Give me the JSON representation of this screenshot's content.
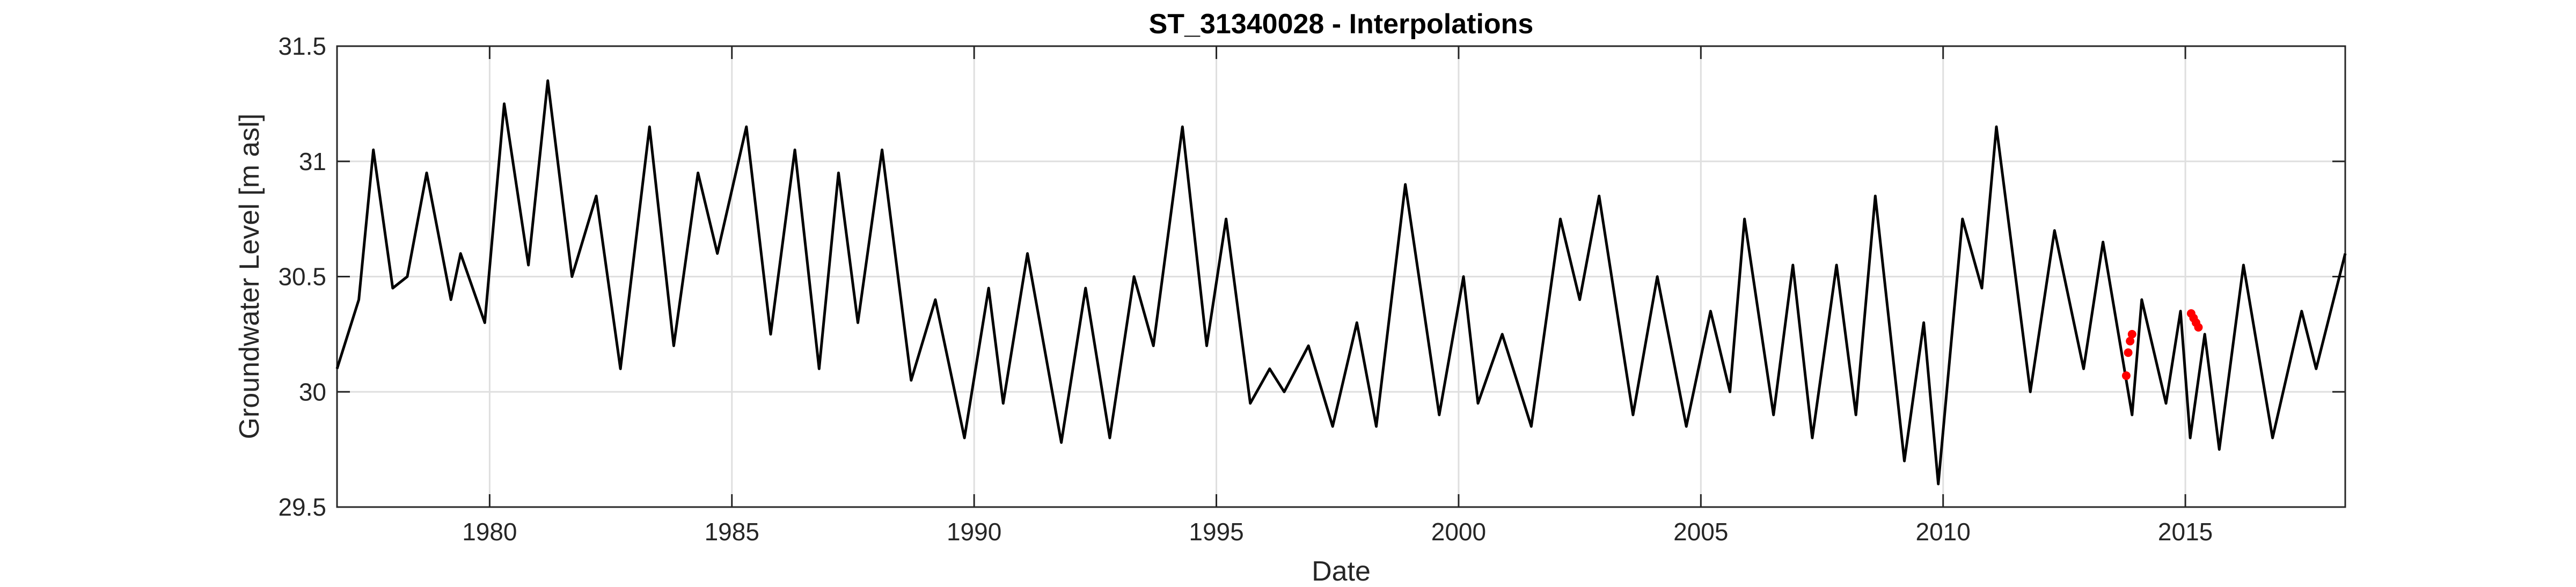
{
  "chart_data": {
    "type": "line",
    "title": "ST_31340028 - Interpolations",
    "xlabel": "Date",
    "ylabel": "Groundwater Level [m asl]",
    "xlim": [
      1976.85,
      2018.3
    ],
    "xticks": [
      1980,
      1985,
      1990,
      1995,
      2000,
      2005,
      2010,
      2015
    ],
    "ylim": [
      29.5,
      31.5
    ],
    "yticks": [
      29.5,
      30,
      30.5,
      31,
      31.5
    ],
    "grid": true,
    "series": [
      {
        "color": "#000000",
        "mode": "line",
        "x": [
          1976.85,
          1977.3,
          1977.6,
          1978.0,
          1978.3,
          1978.7,
          1979.2,
          1979.4,
          1979.9,
          1980.3,
          1980.8,
          1981.2,
          1981.7,
          1982.2,
          1982.7,
          1983.3,
          1983.8,
          1984.3,
          1984.7,
          1985.3,
          1985.8,
          1986.3,
          1986.8,
          1987.2,
          1987.6,
          1988.1,
          1988.7,
          1989.2,
          1989.8,
          1990.3,
          1990.6,
          1991.1,
          1991.8,
          1992.3,
          1992.8,
          1993.3,
          1993.7,
          1994.3,
          1994.8,
          1995.2,
          1995.7,
          1996.1,
          1996.4,
          1996.9,
          1997.4,
          1997.9,
          1998.3,
          1998.7,
          1998.9,
          1999.6,
          2000.1,
          2000.4,
          2000.9,
          2001.5,
          2002.1,
          2002.5,
          2002.9,
          2003.6,
          2004.1,
          2004.7,
          2005.2,
          2005.6,
          2005.9,
          2006.5,
          2006.9,
          2007.3,
          2007.8,
          2008.2,
          2008.6,
          2009.2,
          2009.6,
          2009.9,
          2010.4,
          2010.8,
          2011.1,
          2011.8,
          2012.3,
          2012.6,
          2012.9,
          2013.3,
          2013.9,
          2014.1,
          2014.6,
          2014.9,
          2015.1,
          2015.4,
          2015.7,
          2016.2,
          2016.8,
          2017.4,
          2017.7,
          2018.3
        ],
        "values": [
          30.1,
          30.4,
          31.05,
          30.45,
          30.5,
          30.95,
          30.4,
          30.6,
          30.3,
          31.25,
          30.55,
          31.35,
          30.5,
          30.85,
          30.1,
          31.15,
          30.2,
          30.95,
          30.6,
          31.15,
          30.25,
          31.05,
          30.1,
          30.95,
          30.3,
          31.05,
          30.05,
          30.4,
          29.8,
          30.45,
          29.95,
          30.6,
          29.78,
          30.45,
          29.8,
          30.5,
          30.2,
          31.15,
          30.2,
          30.75,
          29.95,
          30.1,
          30.0,
          30.2,
          29.85,
          30.3,
          29.85,
          30.55,
          30.9,
          29.9,
          30.5,
          29.95,
          30.25,
          29.85,
          30.75,
          30.4,
          30.85,
          29.9,
          30.5,
          29.85,
          30.35,
          30.0,
          30.75,
          29.9,
          30.55,
          29.8,
          30.55,
          29.9,
          30.85,
          29.7,
          30.3,
          29.6,
          30.75,
          30.45,
          31.15,
          30.0,
          30.7,
          30.4,
          30.1,
          30.65,
          29.9,
          30.4,
          29.95,
          30.35,
          29.8,
          30.25,
          29.75,
          30.55,
          29.8,
          30.35,
          30.1,
          30.6
        ]
      },
      {
        "color": "#ff0000",
        "mode": "markers",
        "x": [
          2013.78,
          2013.82,
          2013.86,
          2013.9
        ],
        "values": [
          30.07,
          30.17,
          30.22,
          30.25
        ]
      },
      {
        "color": "#ff0000",
        "mode": "markers",
        "x": [
          2015.12,
          2015.17,
          2015.22,
          2015.27
        ],
        "values": [
          30.34,
          30.32,
          30.3,
          30.28
        ]
      }
    ]
  }
}
